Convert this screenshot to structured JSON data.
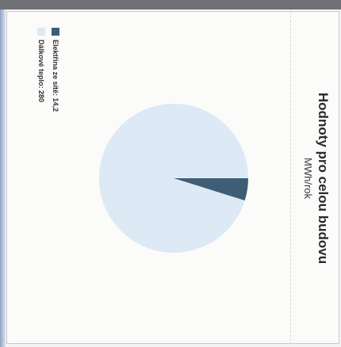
{
  "chart_data": {
    "type": "pie",
    "title": "Hodnoty pro celou budovu",
    "subtitle": "MWh/rok",
    "categories": [
      "Elektřina ze sítě",
      "Dálkové teplo"
    ],
    "values": [
      14.2,
      280
    ],
    "colors": [
      "#3f5e75",
      "#dde9f4"
    ],
    "legend_placement": "bottom-left",
    "legend": [
      {
        "label": "Elektřina ze sítě: 14,2",
        "color": "#3f5e75"
      },
      {
        "label": "Dálkové teplo: 280",
        "color": "#dde9f4"
      }
    ]
  }
}
